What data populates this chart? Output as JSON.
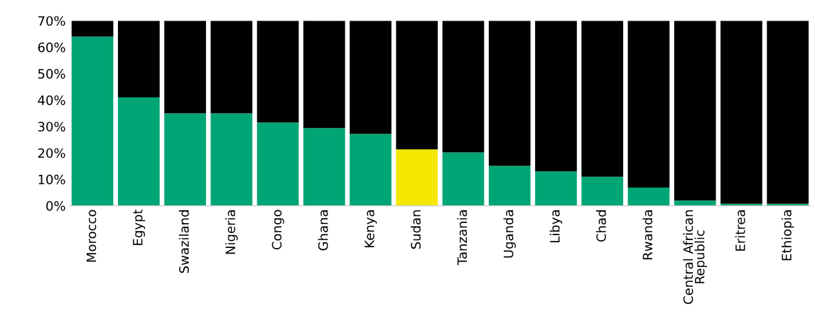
{
  "chart_data": {
    "type": "bar",
    "stacked": true,
    "categories": [
      "Morocco",
      "Egypt",
      "Swaziland",
      "Nigeria",
      "Congo",
      "Ghana",
      "Kenya",
      "Sudan",
      "Tanzania",
      "Uganda",
      "Libya",
      "Chad",
      "Rwanda",
      "Central African\nRepublic",
      "Eritrea",
      "Ethiopia"
    ],
    "series": [
      {
        "colors": [
          "#00a575",
          "#00a575",
          "#00a575",
          "#00a575",
          "#00a575",
          "#00a575",
          "#00a575",
          "#f5e800",
          "#00a575",
          "#00a575",
          "#00a575",
          "#00a575",
          "#00a575",
          "#00a575",
          "#00a575",
          "#00a575"
        ],
        "values": [
          64,
          41,
          35,
          35,
          31.5,
          29.4,
          27.2,
          21.3,
          20.2,
          15.1,
          13,
          11,
          6.9,
          2,
          0.8,
          0.8
        ]
      },
      {
        "color": "#000000",
        "values": [
          6,
          29,
          35,
          35,
          38.5,
          40.6,
          42.8,
          48.7,
          49.8,
          54.9,
          57,
          59,
          63.1,
          68,
          69.2,
          69.2
        ]
      }
    ],
    "ylim": [
      0,
      70
    ],
    "yticks": [
      {
        "value": 0,
        "label": "0%"
      },
      {
        "value": 10,
        "label": "10%"
      },
      {
        "value": 20,
        "label": "20%"
      },
      {
        "value": 30,
        "label": "30%"
      },
      {
        "value": 40,
        "label": "40%"
      },
      {
        "value": 50,
        "label": "50%"
      },
      {
        "value": 60,
        "label": "60%"
      },
      {
        "value": 70,
        "label": "70%"
      }
    ],
    "grid": false,
    "legend": false
  }
}
